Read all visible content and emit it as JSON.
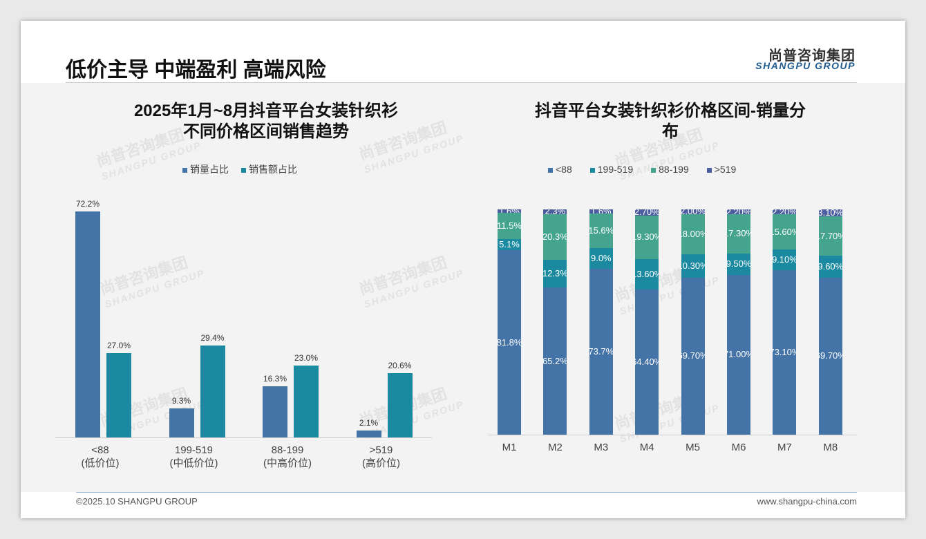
{
  "header": {
    "title": "低价主导 中端盈利 高端风险",
    "logo_cn": "尚普咨询集团",
    "logo_en": "SHANGPU GROUP"
  },
  "footer": {
    "copyright": "©2025.10 SHANGPU GROUP",
    "website": "www.shangpu-china.com"
  },
  "watermark": {
    "cn": "尚普咨询集团",
    "en": "SHANGPU GROUP"
  },
  "colors": {
    "blue": "#4473a7",
    "teal": "#1b8aa1",
    "green": "#45a48d",
    "navy": "#4b5d9e"
  },
  "chart_data": [
    {
      "type": "bar",
      "title_line1": "2025年1月~8月抖音平台女装针织衫",
      "title_line2": "不同价格区间销售趋势",
      "categories": [
        "<88",
        "199-519",
        "88-199",
        ">519"
      ],
      "category_sub": [
        "(低价位)",
        "(中低价位)",
        "(中高价位)",
        "(高价位)"
      ],
      "series": [
        {
          "name": "销量占比",
          "values": [
            72.2,
            9.3,
            16.3,
            2.1
          ],
          "labels": [
            "72.2%",
            "9.3%",
            "16.3%",
            "2.1%"
          ]
        },
        {
          "name": "销售额占比",
          "values": [
            27.0,
            29.4,
            23.0,
            20.6
          ],
          "labels": [
            "27.0%",
            "29.4%",
            "23.0%",
            "20.6%"
          ]
        }
      ],
      "ylim": [
        0,
        80
      ],
      "legend": "top"
    },
    {
      "type": "bar",
      "stacked": true,
      "title_line1": "抖音平台女装针织衫价格区间-销量分",
      "title_line2": "布",
      "categories": [
        "M1",
        "M2",
        "M3",
        "M4",
        "M5",
        "M6",
        "M7",
        "M8"
      ],
      "series": [
        {
          "name": "<88",
          "values": [
            81.8,
            65.2,
            73.7,
            64.4,
            69.7,
            71.0,
            73.1,
            69.7
          ],
          "labels": [
            "81.8%",
            "65.2%",
            "73.7%",
            "64.40%",
            "69.70%",
            "71.00%",
            "73.10%",
            "69.70%"
          ]
        },
        {
          "name": "199-519",
          "values": [
            5.1,
            12.3,
            9.0,
            13.6,
            10.3,
            9.5,
            9.1,
            9.6
          ],
          "labels": [
            "5.1%",
            "12.3%",
            "9.0%",
            "13.60%",
            "10.30%",
            "9.50%",
            "9.10%",
            "9.60%"
          ]
        },
        {
          "name": "88-199",
          "values": [
            11.5,
            20.3,
            15.6,
            19.3,
            18.0,
            17.3,
            15.6,
            17.7
          ],
          "labels": [
            "11.5%",
            "20.3%",
            "15.6%",
            "19.30%",
            "18.00%",
            "17.30%",
            "15.60%",
            "17.70%"
          ]
        },
        {
          "name": ">519",
          "values": [
            1.6,
            2.3,
            1.6,
            2.7,
            2.0,
            2.2,
            2.2,
            3.1
          ],
          "labels": [
            "1.6%",
            "2.3%",
            "1.6%",
            "2.70%",
            "2.00%",
            "2.20%",
            "2.20%",
            "3.10%"
          ]
        }
      ],
      "ylim": [
        0,
        100
      ],
      "legend": "top"
    }
  ]
}
